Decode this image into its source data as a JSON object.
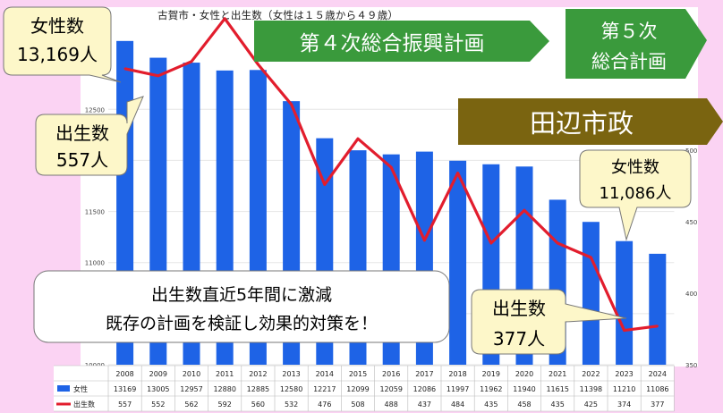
{
  "chart_data": {
    "type": "bar",
    "title": "古賀市・女性と出生数（女性は１５歳から４９歳）",
    "categories": [
      "2008",
      "2009",
      "2010",
      "2011",
      "2012",
      "2013",
      "2014",
      "2015",
      "2016",
      "2017",
      "2018",
      "2019",
      "2020",
      "2021",
      "2022",
      "2023",
      "2024"
    ],
    "series": [
      {
        "name": "女性",
        "type": "bar",
        "axis": "left",
        "color": "#1e63e6",
        "values": [
          13169,
          13005,
          12957,
          12880,
          12885,
          12580,
          12217,
          12099,
          12059,
          12086,
          11997,
          11962,
          11940,
          11615,
          11398,
          11210,
          11086
        ]
      },
      {
        "name": "出生数",
        "type": "line",
        "axis": "right",
        "color": "#e21d2d",
        "values": [
          557,
          552,
          562,
          592,
          560,
          532,
          476,
          508,
          488,
          437,
          484,
          435,
          458,
          435,
          425,
          374,
          377
        ]
      }
    ],
    "left_axis": {
      "ylim": [
        10000,
        13500
      ],
      "ticks": [
        "10000",
        "10500",
        "11000",
        "11500",
        "12000",
        "12500"
      ]
    },
    "right_axis": {
      "ylim": [
        350,
        600
      ],
      "ticks": [
        "350",
        "400",
        "450",
        "500"
      ]
    },
    "legend_placement": "bottom-left table"
  },
  "annotations": {
    "women_first_line1": "女性数",
    "women_first_line2": "13,169人",
    "births_first_line1": "出生数",
    "births_first_line2": "557人",
    "women_last_line1": "女性数",
    "women_last_line2": "11,086人",
    "births_last_line1": "出生数",
    "births_last_line2": "377人",
    "message_line1": "出生数直近5年間に激減",
    "message_line2": "既存の計画を検証し効果的対策を！"
  },
  "banners": {
    "plan4": "第４次総合振興計画",
    "plan5_line1": "第５次",
    "plan5_line2": "総合計画",
    "mayor": "田辺市政"
  },
  "colors": {
    "background": "#fbd3f3",
    "bar": "#1e63e6",
    "line": "#e21d2d",
    "callout_fill": "#fdf7c9",
    "banner_green": "#3a9a3c",
    "banner_brown": "#7a6410"
  }
}
